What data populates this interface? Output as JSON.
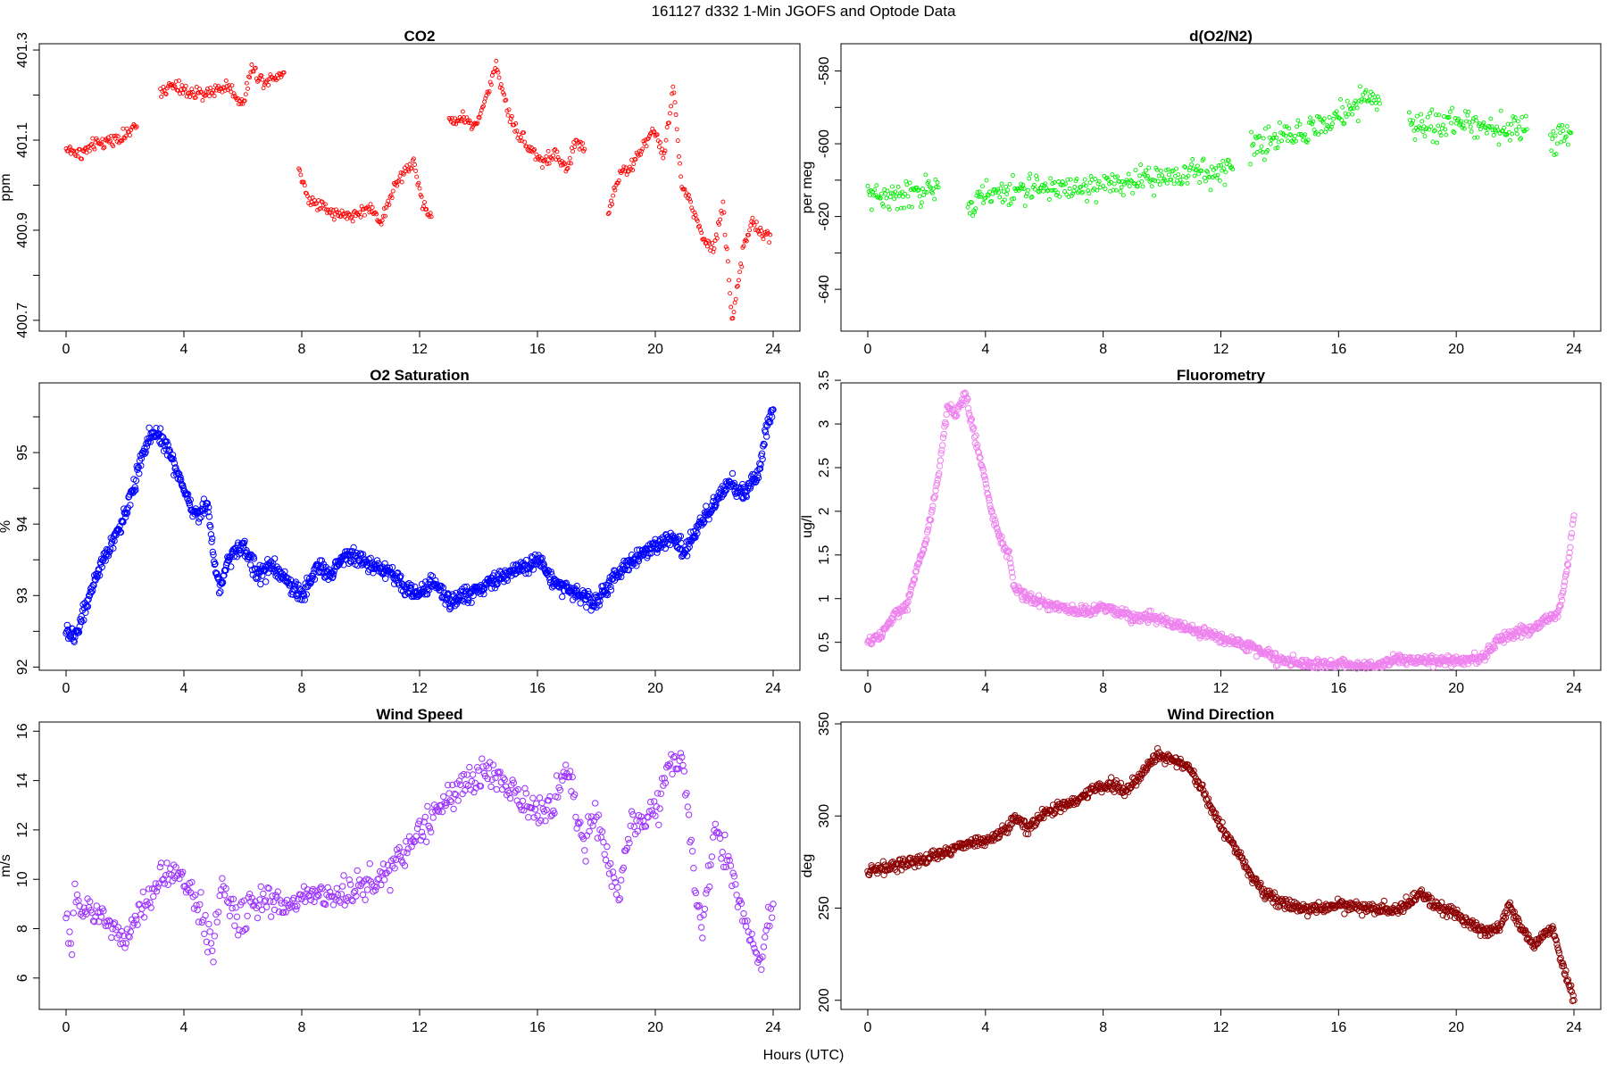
{
  "figure": {
    "title": "161127   d332   1-Min  JGOFS and Optode Data",
    "xlabel": "Hours (UTC)"
  },
  "chart_data": [
    {
      "type": "scatter",
      "title": "CO2",
      "ylabel": "ppm",
      "color": "#ff0000",
      "marker": "small-circle",
      "xlim": [
        0,
        24
      ],
      "ylim": [
        400.68,
        401.31
      ],
      "xticks": [
        0,
        4,
        8,
        12,
        16,
        20,
        24
      ],
      "yticks": [
        400.7,
        400.9,
        401.1,
        401.3
      ],
      "y_minor_ticks": [
        400.8,
        401.0,
        401.2
      ],
      "grid": false,
      "trend": [
        [
          0.0,
          401.08
        ],
        [
          0.5,
          401.07
        ],
        [
          1.0,
          401.09
        ],
        [
          1.5,
          401.1
        ],
        [
          2.0,
          401.11
        ],
        [
          2.4,
          401.13
        ],
        [
          null,
          null
        ],
        [
          3.2,
          401.21
        ],
        [
          3.6,
          401.22
        ],
        [
          4.0,
          401.21
        ],
        [
          4.5,
          401.2
        ],
        [
          5.0,
          401.21
        ],
        [
          5.5,
          401.22
        ],
        [
          6.0,
          401.18
        ],
        [
          6.3,
          401.26
        ],
        [
          6.7,
          401.23
        ],
        [
          7.0,
          401.24
        ],
        [
          7.4,
          401.25
        ],
        [
          null,
          null
        ],
        [
          7.9,
          401.04
        ],
        [
          8.2,
          400.97
        ],
        [
          8.6,
          400.96
        ],
        [
          9.0,
          400.94
        ],
        [
          9.5,
          400.93
        ],
        [
          10.0,
          400.94
        ],
        [
          10.3,
          400.95
        ],
        [
          10.7,
          400.92
        ],
        [
          11.1,
          400.99
        ],
        [
          11.5,
          401.03
        ],
        [
          11.8,
          401.05
        ],
        [
          12.1,
          400.96
        ],
        [
          12.4,
          400.93
        ],
        [
          null,
          null
        ],
        [
          13.0,
          401.14
        ],
        [
          13.5,
          401.15
        ],
        [
          13.9,
          401.13
        ],
        [
          14.3,
          401.2
        ],
        [
          14.6,
          401.27
        ],
        [
          15.0,
          401.16
        ],
        [
          15.4,
          401.11
        ],
        [
          15.8,
          401.08
        ],
        [
          16.2,
          401.05
        ],
        [
          16.6,
          401.07
        ],
        [
          17.0,
          401.03
        ],
        [
          17.3,
          401.1
        ],
        [
          17.6,
          401.08
        ],
        [
          null,
          null
        ],
        [
          18.4,
          400.94
        ],
        [
          18.8,
          401.03
        ],
        [
          19.2,
          401.04
        ],
        [
          19.6,
          401.09
        ],
        [
          20.0,
          401.12
        ],
        [
          20.3,
          401.06
        ],
        [
          20.6,
          401.22
        ],
        [
          20.9,
          401.0
        ],
        [
          21.2,
          400.96
        ],
        [
          21.6,
          400.88
        ],
        [
          22.0,
          400.86
        ],
        [
          22.3,
          400.96
        ],
        [
          22.6,
          400.7
        ],
        [
          23.0,
          400.86
        ],
        [
          23.3,
          400.92
        ],
        [
          23.6,
          400.89
        ],
        [
          23.9,
          400.89
        ]
      ]
    },
    {
      "type": "scatter",
      "title": "d(O2/N2)",
      "ylabel": "per meg",
      "color": "#00ee00",
      "marker": "small-circle",
      "xlim": [
        0,
        24
      ],
      "ylim": [
        -651,
        -573
      ],
      "xticks": [
        0,
        4,
        8,
        12,
        16,
        20,
        24
      ],
      "yticks": [
        -640,
        -620,
        -600,
        -580
      ],
      "y_minor_ticks": [
        -630,
        -610,
        -590
      ],
      "grid": false,
      "trend": [
        [
          0.0,
          -614
        ],
        [
          0.5,
          -614
        ],
        [
          1.0,
          -615
        ],
        [
          1.5,
          -614
        ],
        [
          2.0,
          -613
        ],
        [
          2.4,
          -612
        ],
        [
          null,
          null
        ],
        [
          3.4,
          -618
        ],
        [
          4.0,
          -614
        ],
        [
          5.0,
          -613
        ],
        [
          6.0,
          -612
        ],
        [
          7.0,
          -612
        ],
        [
          7.9,
          -612
        ],
        [
          null,
          null
        ],
        [
          8.0,
          -611
        ],
        [
          9.0,
          -611
        ],
        [
          10.0,
          -609
        ],
        [
          11.0,
          -608
        ],
        [
          12.0,
          -608
        ],
        [
          12.4,
          -607
        ],
        [
          null,
          null
        ],
        [
          13.0,
          -601
        ],
        [
          14.0,
          -598
        ],
        [
          15.0,
          -596
        ],
        [
          16.0,
          -593
        ],
        [
          16.7,
          -588
        ],
        [
          17.4,
          -589
        ],
        [
          null,
          null
        ],
        [
          18.4,
          -594
        ],
        [
          19.0,
          -595
        ],
        [
          20.0,
          -594
        ],
        [
          21.0,
          -595
        ],
        [
          22.0,
          -596
        ],
        [
          22.4,
          -596
        ],
        [
          null,
          null
        ],
        [
          23.2,
          -600
        ],
        [
          23.6,
          -598
        ],
        [
          23.9,
          -597
        ]
      ]
    },
    {
      "type": "scatter",
      "title": "O2 Saturation",
      "ylabel": "%",
      "color": "#0000ff",
      "marker": "circle",
      "xlim": [
        0,
        24
      ],
      "ylim": [
        91.98,
        95.95
      ],
      "xticks": [
        0,
        4,
        8,
        12,
        16,
        20,
        24
      ],
      "yticks": [
        92.0,
        93.0,
        94.0,
        95.0
      ],
      "y_minor_ticks": [
        92.5,
        93.5,
        94.5,
        95.5
      ],
      "grid": false,
      "trend": [
        [
          0.0,
          92.5
        ],
        [
          0.3,
          92.4
        ],
        [
          0.6,
          92.8
        ],
        [
          1.0,
          93.2
        ],
        [
          1.5,
          93.7
        ],
        [
          2.0,
          94.1
        ],
        [
          2.4,
          94.7
        ],
        [
          2.8,
          95.2
        ],
        [
          3.1,
          95.3
        ],
        [
          3.5,
          95.0
        ],
        [
          4.0,
          94.5
        ],
        [
          4.4,
          94.1
        ],
        [
          4.8,
          94.3
        ],
        [
          5.0,
          93.6
        ],
        [
          5.2,
          93.1
        ],
        [
          5.6,
          93.6
        ],
        [
          6.0,
          93.7
        ],
        [
          6.5,
          93.3
        ],
        [
          7.0,
          93.4
        ],
        [
          7.5,
          93.2
        ],
        [
          8.0,
          93.0
        ],
        [
          8.5,
          93.4
        ],
        [
          9.0,
          93.3
        ],
        [
          9.5,
          93.6
        ],
        [
          10.0,
          93.5
        ],
        [
          10.5,
          93.4
        ],
        [
          11.0,
          93.3
        ],
        [
          11.5,
          93.1
        ],
        [
          12.0,
          93.0
        ],
        [
          12.5,
          93.2
        ],
        [
          13.0,
          92.9
        ],
        [
          13.5,
          93.0
        ],
        [
          14.0,
          93.1
        ],
        [
          14.5,
          93.2
        ],
        [
          15.0,
          93.3
        ],
        [
          15.5,
          93.4
        ],
        [
          16.0,
          93.5
        ],
        [
          16.5,
          93.2
        ],
        [
          17.0,
          93.1
        ],
        [
          17.5,
          93.0
        ],
        [
          18.0,
          92.9
        ],
        [
          18.5,
          93.2
        ],
        [
          19.0,
          93.4
        ],
        [
          19.5,
          93.6
        ],
        [
          20.0,
          93.7
        ],
        [
          20.5,
          93.8
        ],
        [
          21.0,
          93.6
        ],
        [
          21.5,
          94.0
        ],
        [
          22.0,
          94.3
        ],
        [
          22.5,
          94.6
        ],
        [
          23.0,
          94.4
        ],
        [
          23.5,
          94.7
        ],
        [
          23.8,
          95.4
        ],
        [
          24.0,
          95.6
        ]
      ]
    },
    {
      "type": "scatter",
      "title": "Fluorometry",
      "ylabel": "ug/l",
      "color": "#ee82ee",
      "marker": "circle",
      "xlim": [
        0,
        24
      ],
      "ylim": [
        0.2,
        3.45
      ],
      "xticks": [
        0,
        4,
        8,
        12,
        16,
        20,
        24
      ],
      "yticks": [
        0.5,
        1.0,
        1.5,
        2.0,
        2.5,
        3.0,
        3.5
      ],
      "grid": false,
      "trend": [
        [
          0.0,
          0.48
        ],
        [
          0.5,
          0.6
        ],
        [
          1.0,
          0.85
        ],
        [
          1.3,
          0.9
        ],
        [
          1.6,
          1.25
        ],
        [
          2.0,
          1.7
        ],
        [
          2.4,
          2.4
        ],
        [
          2.7,
          3.2
        ],
        [
          3.0,
          3.1
        ],
        [
          3.3,
          3.35
        ],
        [
          3.6,
          2.9
        ],
        [
          3.9,
          2.5
        ],
        [
          4.2,
          2.0
        ],
        [
          4.5,
          1.7
        ],
        [
          4.8,
          1.5
        ],
        [
          5.0,
          1.1
        ],
        [
          5.5,
          1.0
        ],
        [
          6.0,
          0.95
        ],
        [
          6.5,
          0.9
        ],
        [
          7.0,
          0.85
        ],
        [
          7.5,
          0.85
        ],
        [
          8.0,
          0.9
        ],
        [
          8.5,
          0.85
        ],
        [
          9.0,
          0.8
        ],
        [
          10.0,
          0.75
        ],
        [
          11.0,
          0.65
        ],
        [
          12.0,
          0.55
        ],
        [
          13.0,
          0.45
        ],
        [
          14.0,
          0.3
        ],
        [
          15.0,
          0.25
        ],
        [
          16.0,
          0.25
        ],
        [
          17.0,
          0.22
        ],
        [
          18.0,
          0.3
        ],
        [
          19.0,
          0.28
        ],
        [
          20.0,
          0.3
        ],
        [
          20.5,
          0.28
        ],
        [
          21.0,
          0.35
        ],
        [
          21.5,
          0.55
        ],
        [
          22.0,
          0.6
        ],
        [
          22.5,
          0.65
        ],
        [
          23.0,
          0.75
        ],
        [
          23.5,
          0.85
        ],
        [
          23.8,
          1.4
        ],
        [
          24.0,
          1.95
        ]
      ]
    },
    {
      "type": "scatter",
      "title": "Wind Speed",
      "ylabel": "m/s",
      "color": "#9b30ff",
      "marker": "circle",
      "xlim": [
        0,
        24
      ],
      "ylim": [
        4.8,
        16.3
      ],
      "xticks": [
        0,
        4,
        8,
        12,
        16,
        20,
        24
      ],
      "yticks": [
        6,
        8,
        10,
        12,
        14,
        16
      ],
      "grid": false,
      "trend": [
        [
          0.0,
          8.8
        ],
        [
          0.2,
          6.8
        ],
        [
          0.3,
          9.5
        ],
        [
          0.5,
          8.6
        ],
        [
          1.0,
          8.6
        ],
        [
          1.5,
          8.3
        ],
        [
          2.0,
          7.5
        ],
        [
          2.5,
          8.8
        ],
        [
          3.0,
          9.6
        ],
        [
          3.5,
          10.2
        ],
        [
          4.0,
          10.0
        ],
        [
          4.5,
          9.0
        ],
        [
          5.0,
          7.2
        ],
        [
          5.3,
          9.8
        ],
        [
          5.6,
          8.6
        ],
        [
          6.0,
          8.6
        ],
        [
          6.5,
          9.0
        ],
        [
          7.0,
          9.2
        ],
        [
          7.5,
          8.8
        ],
        [
          8.0,
          9.3
        ],
        [
          8.5,
          9.5
        ],
        [
          9.0,
          9.2
        ],
        [
          9.5,
          9.4
        ],
        [
          10.0,
          9.7
        ],
        [
          10.5,
          9.9
        ],
        [
          11.0,
          10.4
        ],
        [
          11.5,
          11.2
        ],
        [
          12.0,
          12.0
        ],
        [
          12.5,
          12.6
        ],
        [
          13.0,
          13.3
        ],
        [
          13.5,
          13.8
        ],
        [
          14.0,
          14.2
        ],
        [
          14.5,
          14.3
        ],
        [
          15.0,
          13.6
        ],
        [
          15.5,
          13.3
        ],
        [
          16.0,
          12.7
        ],
        [
          16.5,
          12.8
        ],
        [
          17.0,
          14.8
        ],
        [
          17.3,
          13.0
        ],
        [
          17.6,
          11.5
        ],
        [
          18.0,
          12.5
        ],
        [
          18.4,
          10.5
        ],
        [
          18.8,
          9.5
        ],
        [
          19.2,
          12.3
        ],
        [
          19.6,
          12.5
        ],
        [
          20.0,
          12.8
        ],
        [
          20.5,
          14.5
        ],
        [
          20.9,
          15.0
        ],
        [
          21.3,
          10.5
        ],
        [
          21.6,
          8.0
        ],
        [
          22.0,
          11.8
        ],
        [
          22.4,
          10.8
        ],
        [
          22.8,
          9.5
        ],
        [
          23.2,
          7.7
        ],
        [
          23.6,
          6.2
        ],
        [
          23.8,
          8.5
        ],
        [
          24.0,
          9.0
        ]
      ]
    },
    {
      "type": "scatter",
      "title": "Wind Direction",
      "ylabel": "deg",
      "color": "#8b0000",
      "marker": "circle",
      "xlim": [
        0,
        24
      ],
      "ylim": [
        196,
        350
      ],
      "xticks": [
        0,
        4,
        8,
        12,
        16,
        20,
        24
      ],
      "yticks": [
        200,
        250,
        300,
        350
      ],
      "grid": false,
      "trend": [
        [
          0.0,
          270
        ],
        [
          1.0,
          273
        ],
        [
          2.0,
          277
        ],
        [
          3.0,
          283
        ],
        [
          4.0,
          287
        ],
        [
          4.5,
          290
        ],
        [
          5.0,
          300
        ],
        [
          5.4,
          293
        ],
        [
          6.0,
          302
        ],
        [
          7.0,
          307
        ],
        [
          7.7,
          315
        ],
        [
          8.3,
          317
        ],
        [
          8.7,
          313
        ],
        [
          9.3,
          322
        ],
        [
          9.8,
          333
        ],
        [
          10.5,
          330
        ],
        [
          11.0,
          325
        ],
        [
          11.5,
          310
        ],
        [
          12.0,
          293
        ],
        [
          12.5,
          283
        ],
        [
          13.0,
          268
        ],
        [
          13.5,
          258
        ],
        [
          14.0,
          253
        ],
        [
          15.0,
          249
        ],
        [
          16.0,
          252
        ],
        [
          17.0,
          250
        ],
        [
          18.0,
          249
        ],
        [
          18.8,
          258
        ],
        [
          19.2,
          252
        ],
        [
          20.0,
          247
        ],
        [
          20.5,
          242
        ],
        [
          21.0,
          236
        ],
        [
          21.5,
          240
        ],
        [
          21.8,
          252
        ],
        [
          22.2,
          240
        ],
        [
          22.6,
          230
        ],
        [
          23.0,
          236
        ],
        [
          23.3,
          238
        ],
        [
          23.6,
          220
        ],
        [
          24.0,
          200
        ]
      ]
    }
  ]
}
